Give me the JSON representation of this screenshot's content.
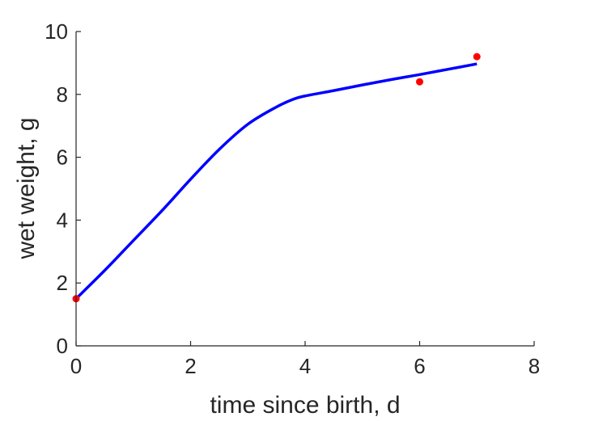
{
  "chart_data": {
    "type": "line",
    "title": "",
    "xlabel": "time since birth, d",
    "ylabel": "wet weight, g",
    "xlim": [
      0,
      8
    ],
    "ylim": [
      0,
      10
    ],
    "xticks": [
      "0",
      "2",
      "4",
      "6",
      "8"
    ],
    "yticks": [
      "0",
      "2",
      "4",
      "6",
      "8",
      "10"
    ],
    "grid": false,
    "legend": "none",
    "series": [
      {
        "kind": "line",
        "color": "#0000ff",
        "x": [
          0,
          0.5,
          1,
          1.5,
          2,
          2.5,
          3,
          3.5,
          3.8,
          4,
          4.5,
          5,
          5.5,
          6,
          6.5,
          7
        ],
        "y": [
          1.5,
          2.4,
          3.35,
          4.3,
          5.3,
          6.25,
          7.05,
          7.6,
          7.85,
          7.95,
          8.12,
          8.3,
          8.47,
          8.63,
          8.8,
          8.97
        ]
      },
      {
        "kind": "scatter",
        "color": "#ff0000",
        "x": [
          0,
          6,
          7
        ],
        "y": [
          1.5,
          8.4,
          9.2
        ]
      }
    ]
  }
}
